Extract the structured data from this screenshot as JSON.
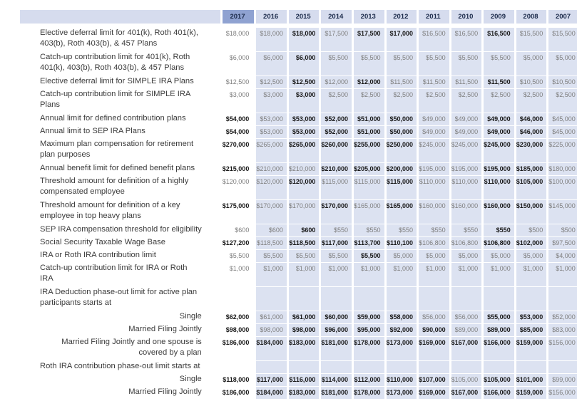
{
  "table": {
    "label_header": "",
    "years": [
      "2017",
      "2016",
      "2015",
      "2014",
      "2013",
      "2012",
      "2011",
      "2010",
      "2009",
      "2008",
      "2007"
    ],
    "highlighted_year": "2017",
    "colors": {
      "year_header_bg": "#d6dcee",
      "year_header_highlight_bg": "#8fa2d1",
      "header_text": "#1b2a4a",
      "cell_bg": "#dce2f1",
      "first_col_bg": "#ffffff",
      "value_regular": "#7f7f7f",
      "value_bold": "#1a1a1a",
      "label_text": "#3b3b3b"
    },
    "rows": [
      {
        "label": "Elective deferral limit for 401(k), Roth 401(k), 403(b), Roth 403(b), & 457 Plans",
        "align": "left",
        "lines": 2,
        "values": [
          "$18,000",
          "$18,000",
          "$18,000",
          "$17,500",
          "$17,500",
          "$17,000",
          "$16,500",
          "$16,500",
          "$16,500",
          "$15,500",
          "$15,500"
        ],
        "bold": [
          0,
          0,
          1,
          0,
          1,
          1,
          0,
          0,
          1,
          0,
          0
        ]
      },
      {
        "label": "Catch-up contribution limit for 401(k), Roth 401(k), 403(b), Roth 403(b), & 457 Plans",
        "align": "left",
        "lines": 2,
        "values": [
          "$6,000",
          "$6,000",
          "$6,000",
          "$5,500",
          "$5,500",
          "$5,500",
          "$5,500",
          "$5,500",
          "$5,500",
          "$5,000",
          "$5,000"
        ],
        "bold": [
          0,
          0,
          1,
          0,
          0,
          0,
          0,
          0,
          0,
          0,
          0
        ]
      },
      {
        "label": "Elective deferral limit for SIMPLE IRA Plans",
        "align": "left",
        "lines": 1,
        "values": [
          "$12,500",
          "$12,500",
          "$12,500",
          "$12,000",
          "$12,000",
          "$11,500",
          "$11,500",
          "$11,500",
          "$11,500",
          "$10,500",
          "$10,500"
        ],
        "bold": [
          0,
          0,
          1,
          0,
          1,
          0,
          0,
          0,
          1,
          0,
          0
        ]
      },
      {
        "label": "Catch-up contribution limit for SIMPLE IRA Plans",
        "align": "left",
        "lines": 2,
        "values": [
          "$3,000",
          "$3,000",
          "$3,000",
          "$2,500",
          "$2,500",
          "$2,500",
          "$2,500",
          "$2,500",
          "$2,500",
          "$2,500",
          "$2,500"
        ],
        "bold": [
          0,
          0,
          1,
          0,
          0,
          0,
          0,
          0,
          0,
          0,
          0
        ]
      },
      {
        "label": "Annual limit for defined contribution plans",
        "align": "left",
        "lines": 1,
        "values": [
          "$54,000",
          "$53,000",
          "$53,000",
          "$52,000",
          "$51,000",
          "$50,000",
          "$49,000",
          "$49,000",
          "$49,000",
          "$46,000",
          "$45,000"
        ],
        "bold": [
          1,
          0,
          1,
          1,
          1,
          1,
          0,
          0,
          1,
          1,
          0
        ]
      },
      {
        "label": "Annual limit to SEP IRA Plans",
        "align": "left",
        "lines": 1,
        "values": [
          "$54,000",
          "$53,000",
          "$53,000",
          "$52,000",
          "$51,000",
          "$50,000",
          "$49,000",
          "$49,000",
          "$49,000",
          "$46,000",
          "$45,000"
        ],
        "bold": [
          1,
          0,
          1,
          1,
          1,
          1,
          0,
          0,
          1,
          1,
          0
        ]
      },
      {
        "label": "Maximum plan compensation for retirement plan purposes",
        "align": "left",
        "lines": 2,
        "values": [
          "$270,000",
          "$265,000",
          "$265,000",
          "$260,000",
          "$255,000",
          "$250,000",
          "$245,000",
          "$245,000",
          "$245,000",
          "$230,000",
          "$225,000"
        ],
        "bold": [
          1,
          0,
          1,
          1,
          1,
          1,
          0,
          0,
          1,
          1,
          0
        ]
      },
      {
        "label": "Annual benefit limit for defined benefit plans",
        "align": "left",
        "lines": 1,
        "values": [
          "$215,000",
          "$210,000",
          "$210,000",
          "$210,000",
          "$205,000",
          "$200,000",
          "$195,000",
          "$195,000",
          "$195,000",
          "$185,000",
          "$180,000"
        ],
        "bold": [
          1,
          0,
          0,
          1,
          1,
          1,
          0,
          0,
          1,
          1,
          0
        ]
      },
      {
        "label": "Threshold amount for definition of a highly compensated employee",
        "align": "left",
        "lines": 2,
        "values": [
          "$120,000",
          "$120,000",
          "$120,000",
          "$115,000",
          "$115,000",
          "$115,000",
          "$110,000",
          "$110,000",
          "$110,000",
          "$105,000",
          "$100,000"
        ],
        "bold": [
          0,
          0,
          1,
          0,
          0,
          1,
          0,
          0,
          1,
          1,
          0
        ]
      },
      {
        "label": "Threshold amount for definition of a key employee in top heavy plans",
        "align": "left",
        "lines": 2,
        "values": [
          "$175,000",
          "$170,000",
          "$170,000",
          "$170,000",
          "$165,000",
          "$165,000",
          "$160,000",
          "$160,000",
          "$160,000",
          "$150,000",
          "$145,000"
        ],
        "bold": [
          1,
          0,
          0,
          1,
          0,
          1,
          0,
          0,
          1,
          1,
          0
        ]
      },
      {
        "label": "SEP IRA compensation threshold for eligibility",
        "align": "left",
        "lines": 1,
        "values": [
          "$600",
          "$600",
          "$600",
          "$550",
          "$550",
          "$550",
          "$550",
          "$550",
          "$550",
          "$500",
          "$500"
        ],
        "bold": [
          0,
          0,
          1,
          0,
          0,
          0,
          0,
          0,
          1,
          0,
          0
        ]
      },
      {
        "label": "Social Security Taxable Wage Base",
        "align": "left",
        "lines": 1,
        "values": [
          "$127,200",
          "$118,500",
          "$118,500",
          "$117,000",
          "$113,700",
          "$110,100",
          "$106,800",
          "$106,800",
          "$106,800",
          "$102,000",
          "$97,500"
        ],
        "bold": [
          1,
          0,
          1,
          1,
          1,
          1,
          0,
          0,
          1,
          1,
          0
        ]
      },
      {
        "label": "IRA or Roth IRA contribution limit",
        "align": "left",
        "lines": 1,
        "values": [
          "$5,500",
          "$5,500",
          "$5,500",
          "$5,500",
          "$5,500",
          "$5,000",
          "$5,000",
          "$5,000",
          "$5,000",
          "$5,000",
          "$4,000"
        ],
        "bold": [
          0,
          0,
          0,
          0,
          1,
          0,
          0,
          0,
          0,
          0,
          0
        ]
      },
      {
        "label": "Catch-up contribution limit for IRA or Roth IRA",
        "align": "left",
        "lines": 2,
        "values": [
          "$1,000",
          "$1,000",
          "$1,000",
          "$1,000",
          "$1,000",
          "$1,000",
          "$1,000",
          "$1,000",
          "$1,000",
          "$1,000",
          "$1,000"
        ],
        "bold": [
          0,
          0,
          0,
          0,
          0,
          0,
          0,
          0,
          0,
          0,
          0
        ]
      },
      {
        "label": "IRA Deduction phase-out limit for active plan participants starts at",
        "align": "left",
        "lines": 2,
        "values": null,
        "bold": null
      },
      {
        "label": "Single",
        "align": "right",
        "lines": 1,
        "values": [
          "$62,000",
          "$61,000",
          "$61,000",
          "$60,000",
          "$59,000",
          "$58,000",
          "$56,000",
          "$56,000",
          "$55,000",
          "$53,000",
          "$52,000"
        ],
        "bold": [
          1,
          0,
          1,
          1,
          1,
          1,
          0,
          0,
          1,
          1,
          0
        ]
      },
      {
        "label": "Married Filing Jointly",
        "align": "right",
        "lines": 1,
        "values": [
          "$98,000",
          "$98,000",
          "$98,000",
          "$96,000",
          "$95,000",
          "$92,000",
          "$90,000",
          "$89,000",
          "$89,000",
          "$85,000",
          "$83,000"
        ],
        "bold": [
          1,
          0,
          1,
          1,
          1,
          1,
          1,
          0,
          1,
          1,
          0
        ]
      },
      {
        "label": "Married Filing Jointly and one spouse is covered by a plan",
        "align": "right",
        "lines": 2,
        "values": [
          "$186,000",
          "$184,000",
          "$183,000",
          "$181,000",
          "$178,000",
          "$173,000",
          "$169,000",
          "$167,000",
          "$166,000",
          "$159,000",
          "$156,000"
        ],
        "bold": [
          1,
          1,
          1,
          1,
          1,
          1,
          1,
          1,
          1,
          1,
          0
        ]
      },
      {
        "label": "Roth IRA contribution phase-out limit starts at",
        "align": "left",
        "lines": 1,
        "values": null,
        "bold": null
      },
      {
        "label": "Single",
        "align": "right",
        "lines": 1,
        "values": [
          "$118,000",
          "$117,000",
          "$116,000",
          "$114,000",
          "$112,000",
          "$110,000",
          "$107,000",
          "$105,000",
          "$105,000",
          "$101,000",
          "$99,000"
        ],
        "bold": [
          1,
          1,
          1,
          1,
          1,
          1,
          1,
          0,
          1,
          1,
          0
        ]
      },
      {
        "label": "Married Filing Jointly",
        "align": "right",
        "lines": 1,
        "values": [
          "$186,000",
          "$184,000",
          "$183,000",
          "$181,000",
          "$178,000",
          "$173,000",
          "$169,000",
          "$167,000",
          "$166,000",
          "$159,000",
          "$156,000"
        ],
        "bold": [
          1,
          1,
          1,
          1,
          1,
          1,
          1,
          1,
          1,
          1,
          0
        ]
      }
    ]
  }
}
